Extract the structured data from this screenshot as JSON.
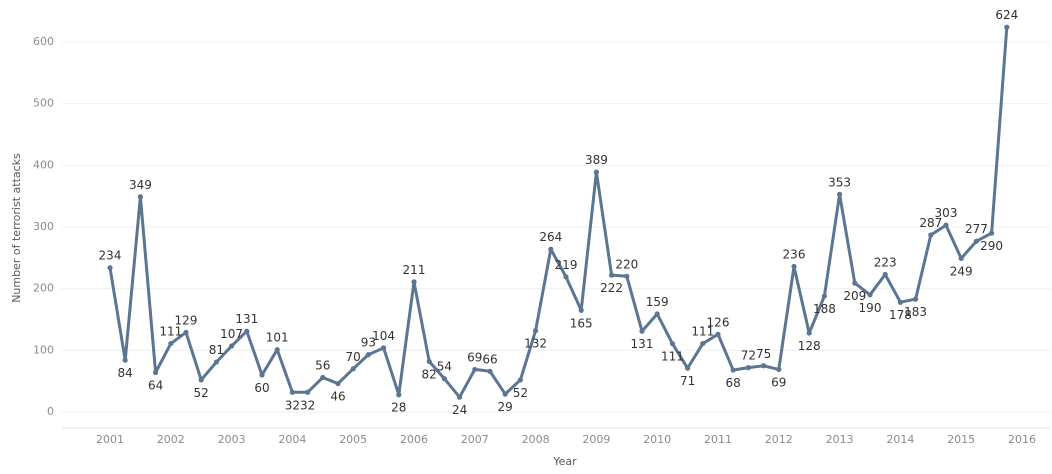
{
  "chart_data": {
    "type": "line",
    "xlabel": "Year",
    "ylabel": "Number of terrorist attacks",
    "ylim": [
      0,
      650
    ],
    "y_ticks": [
      0,
      100,
      200,
      300,
      400,
      500,
      600
    ],
    "x_ticks": [
      "2001",
      "2002",
      "2003",
      "2004",
      "2005",
      "2006",
      "2007",
      "2008",
      "2009",
      "2010",
      "2011",
      "2012",
      "2013",
      "2014",
      "2015",
      "2016"
    ],
    "x_range": [
      2001,
      2016
    ],
    "grid": "horizontal",
    "line_color": "#5b7593",
    "series": [
      {
        "x": [
          2001.0,
          2001.25,
          2001.5,
          2001.75,
          2002.0,
          2002.25,
          2002.5,
          2002.75,
          2003.0,
          2003.25,
          2003.5,
          2003.75,
          2004.0,
          2004.25,
          2004.5,
          2004.75,
          2005.0,
          2005.25,
          2005.5,
          2005.75,
          2006.0,
          2006.25,
          2006.5,
          2006.75,
          2007.0,
          2007.25,
          2007.5,
          2007.75,
          2008.0,
          2008.25,
          2008.5,
          2008.75,
          2009.0,
          2009.25,
          2009.5,
          2009.75,
          2010.0,
          2010.25,
          2010.5,
          2010.75,
          2011.0,
          2011.25,
          2011.5,
          2011.75,
          2012.0,
          2012.25,
          2012.5,
          2012.75,
          2013.0,
          2013.25,
          2013.5,
          2013.75,
          2014.0,
          2014.25,
          2014.5,
          2014.75,
          2015.0,
          2015.25,
          2015.5,
          2015.75
        ],
        "y": [
          234,
          84,
          349,
          64,
          111,
          129,
          52,
          81,
          107,
          131,
          60,
          101,
          32,
          32,
          56,
          46,
          70,
          93,
          104,
          28,
          211,
          82,
          54,
          24,
          69,
          66,
          29,
          52,
          132,
          264,
          219,
          165,
          389,
          222,
          220,
          131,
          159,
          111,
          71,
          111,
          126,
          68,
          72,
          75,
          69,
          236,
          128,
          188,
          353,
          209,
          190,
          223,
          178,
          183,
          287,
          303,
          249,
          277,
          290,
          624
        ]
      }
    ]
  }
}
